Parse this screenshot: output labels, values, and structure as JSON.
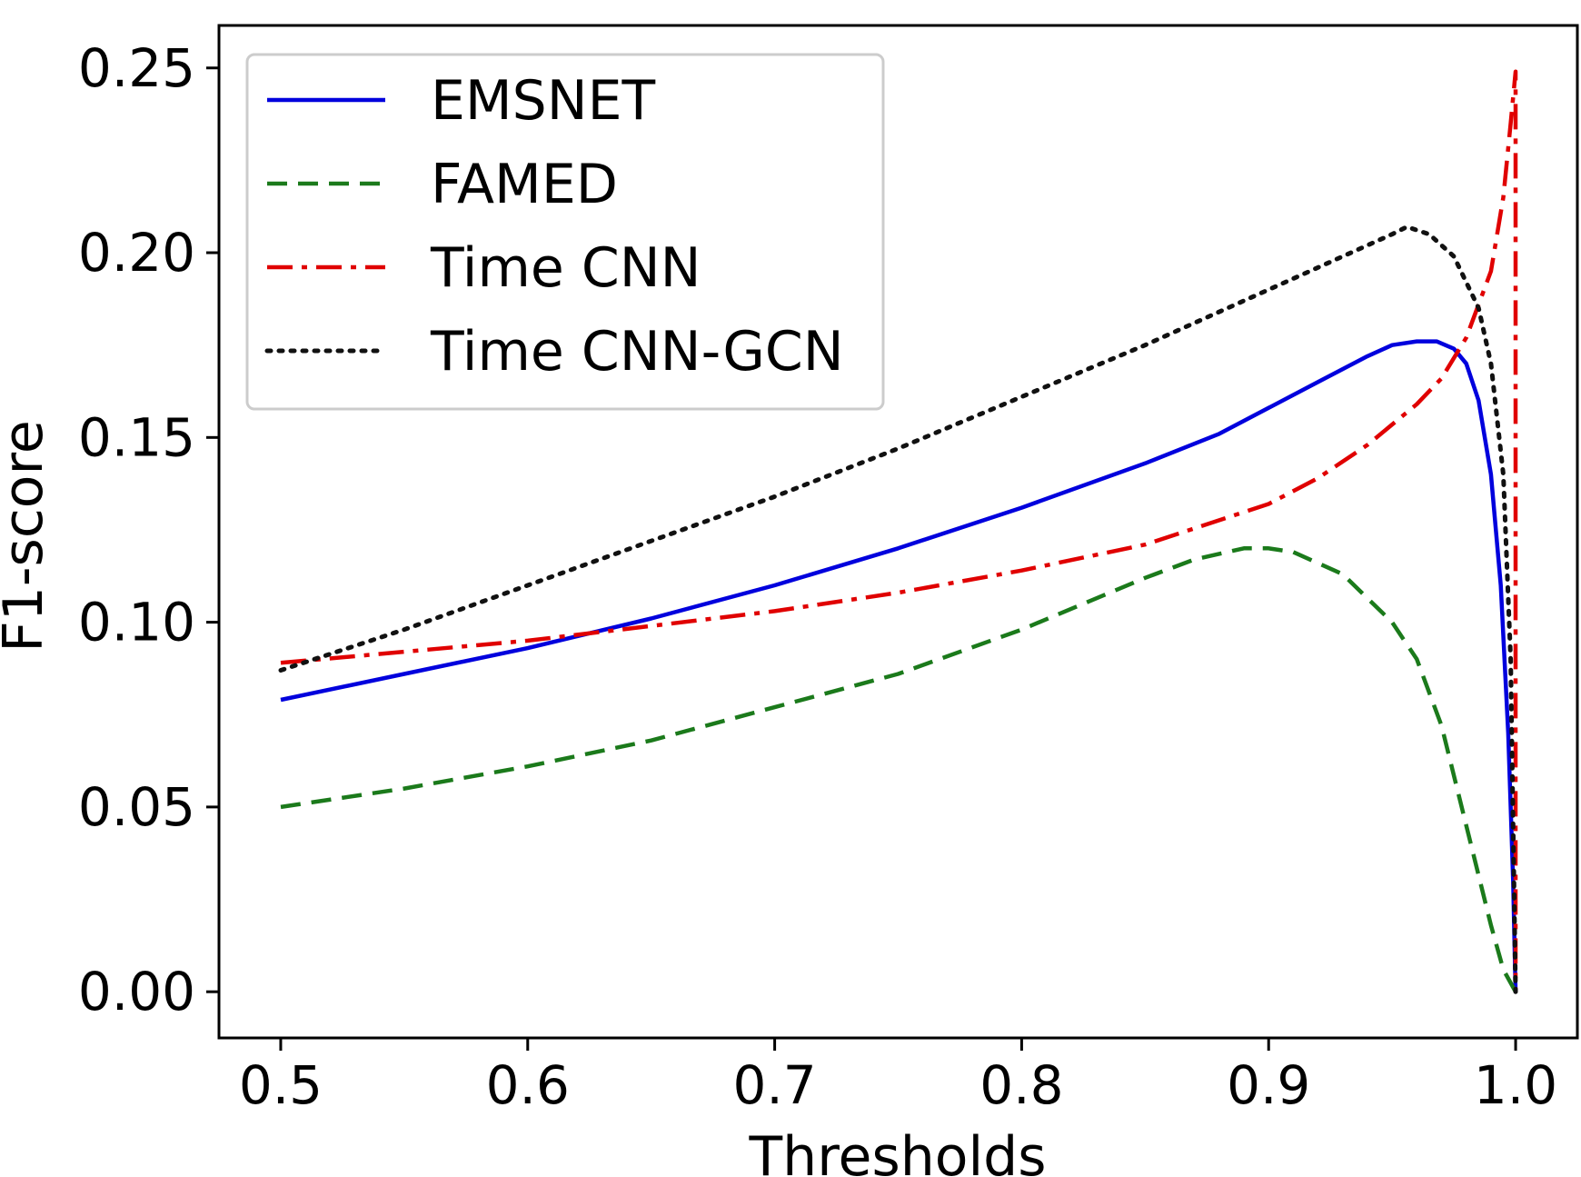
{
  "chart_data": {
    "type": "line",
    "title": "",
    "xlabel": "Thresholds",
    "ylabel": "F1-score",
    "xlim": [
      0.475,
      1.025
    ],
    "ylim": [
      -0.0125,
      0.2615
    ],
    "x_ticks": [
      0.5,
      0.6,
      0.7,
      0.8,
      0.9,
      1.0
    ],
    "x_tick_labels": [
      "0.5",
      "0.6",
      "0.7",
      "0.8",
      "0.9",
      "1.0"
    ],
    "y_ticks": [
      0.0,
      0.05,
      0.1,
      0.15,
      0.2,
      0.25
    ],
    "y_tick_labels": [
      "0.00",
      "0.05",
      "0.10",
      "0.15",
      "0.20",
      "0.25"
    ],
    "grid": false,
    "legend_position": "top-left",
    "series": [
      {
        "name": "EMSNET",
        "color": "#0000dd",
        "style": "solid",
        "points": [
          [
            0.5,
            0.079
          ],
          [
            0.55,
            0.086
          ],
          [
            0.6,
            0.093
          ],
          [
            0.65,
            0.101
          ],
          [
            0.7,
            0.11
          ],
          [
            0.75,
            0.12
          ],
          [
            0.8,
            0.131
          ],
          [
            0.85,
            0.143
          ],
          [
            0.88,
            0.151
          ],
          [
            0.9,
            0.158
          ],
          [
            0.92,
            0.165
          ],
          [
            0.94,
            0.172
          ],
          [
            0.95,
            0.175
          ],
          [
            0.96,
            0.176
          ],
          [
            0.968,
            0.176
          ],
          [
            0.975,
            0.174
          ],
          [
            0.98,
            0.17
          ],
          [
            0.985,
            0.16
          ],
          [
            0.99,
            0.14
          ],
          [
            0.994,
            0.11
          ],
          [
            0.997,
            0.07
          ],
          [
            0.999,
            0.03
          ],
          [
            1.0,
            0.0
          ]
        ]
      },
      {
        "name": "FAMED",
        "color": "#1b7a1b",
        "style": "dashed",
        "points": [
          [
            0.5,
            0.05
          ],
          [
            0.55,
            0.055
          ],
          [
            0.6,
            0.061
          ],
          [
            0.65,
            0.068
          ],
          [
            0.7,
            0.077
          ],
          [
            0.75,
            0.086
          ],
          [
            0.8,
            0.098
          ],
          [
            0.85,
            0.112
          ],
          [
            0.87,
            0.117
          ],
          [
            0.89,
            0.12
          ],
          [
            0.9,
            0.12
          ],
          [
            0.91,
            0.119
          ],
          [
            0.93,
            0.113
          ],
          [
            0.95,
            0.1
          ],
          [
            0.96,
            0.09
          ],
          [
            0.97,
            0.072
          ],
          [
            0.98,
            0.045
          ],
          [
            0.99,
            0.018
          ],
          [
            0.995,
            0.006
          ],
          [
            1.0,
            0.0
          ]
        ]
      },
      {
        "name": "Time CNN",
        "color": "#e00000",
        "style": "dashdot",
        "points": [
          [
            0.5,
            0.089
          ],
          [
            0.55,
            0.092
          ],
          [
            0.6,
            0.095
          ],
          [
            0.65,
            0.099
          ],
          [
            0.7,
            0.103
          ],
          [
            0.75,
            0.108
          ],
          [
            0.8,
            0.114
          ],
          [
            0.85,
            0.121
          ],
          [
            0.9,
            0.132
          ],
          [
            0.92,
            0.139
          ],
          [
            0.94,
            0.148
          ],
          [
            0.96,
            0.159
          ],
          [
            0.97,
            0.166
          ],
          [
            0.98,
            0.177
          ],
          [
            0.99,
            0.195
          ],
          [
            0.995,
            0.215
          ],
          [
            0.998,
            0.235
          ],
          [
            1.0,
            0.249
          ],
          [
            1.0,
            0.12
          ],
          [
            1.0,
            0.0
          ]
        ]
      },
      {
        "name": "Time CNN-GCN",
        "color": "#111111",
        "style": "dotted",
        "points": [
          [
            0.5,
            0.087
          ],
          [
            0.55,
            0.098
          ],
          [
            0.6,
            0.11
          ],
          [
            0.65,
            0.122
          ],
          [
            0.7,
            0.134
          ],
          [
            0.75,
            0.147
          ],
          [
            0.8,
            0.161
          ],
          [
            0.85,
            0.175
          ],
          [
            0.9,
            0.19
          ],
          [
            0.93,
            0.199
          ],
          [
            0.95,
            0.205
          ],
          [
            0.956,
            0.207
          ],
          [
            0.965,
            0.205
          ],
          [
            0.975,
            0.199
          ],
          [
            0.985,
            0.185
          ],
          [
            0.99,
            0.17
          ],
          [
            0.995,
            0.14
          ],
          [
            0.998,
            0.09
          ],
          [
            1.0,
            0.0
          ]
        ]
      }
    ]
  }
}
